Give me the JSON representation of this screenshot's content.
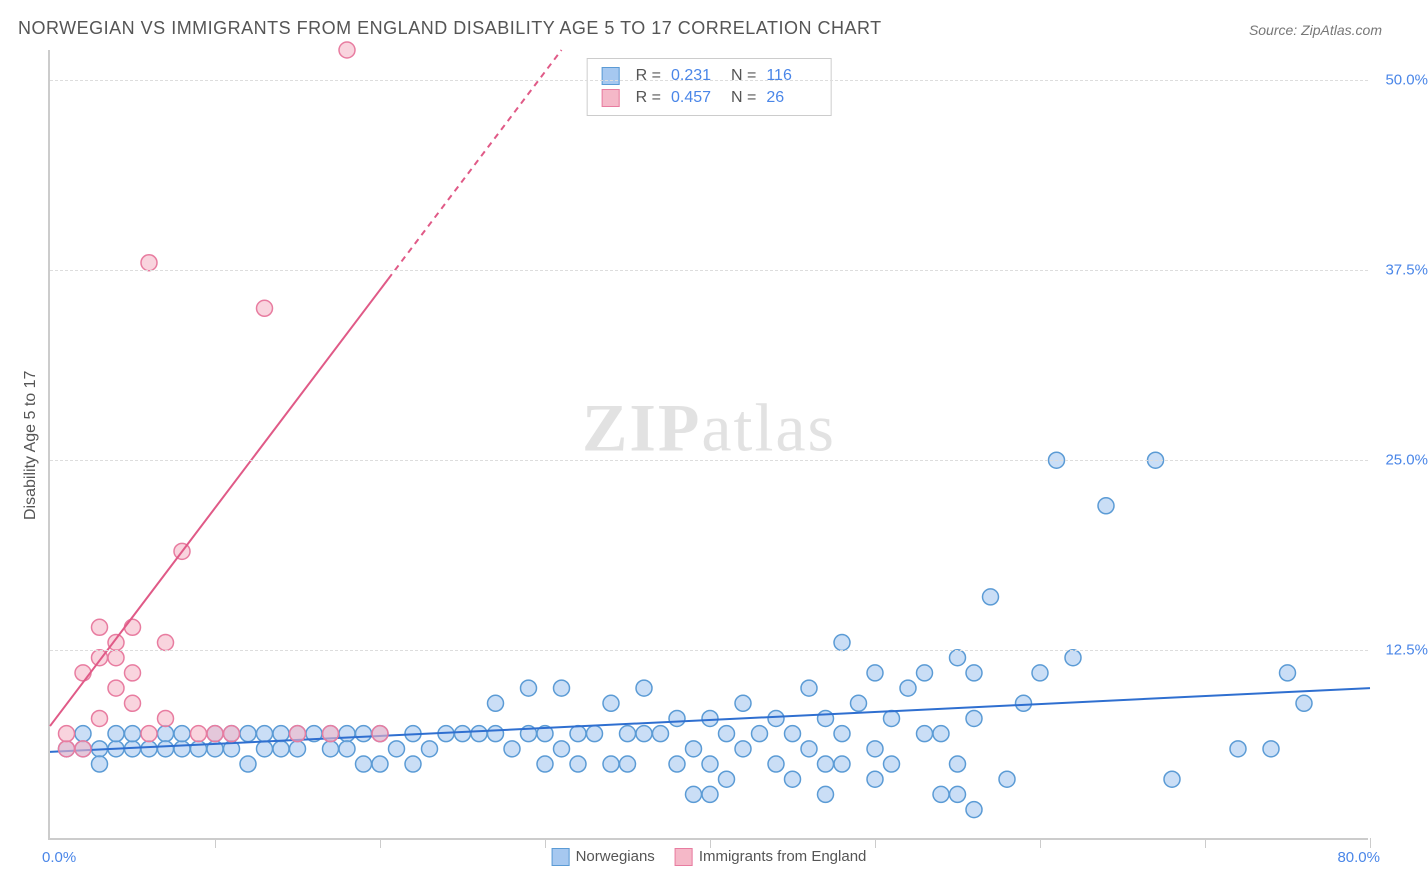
{
  "title": "NORWEGIAN VS IMMIGRANTS FROM ENGLAND DISABILITY AGE 5 TO 17 CORRELATION CHART",
  "source": "Source: ZipAtlas.com",
  "watermark": {
    "bold": "ZIP",
    "rest": "atlas"
  },
  "chart": {
    "type": "scatter",
    "ylabel": "Disability Age 5 to 17",
    "xlim": [
      0,
      80
    ],
    "ylim": [
      0,
      52
    ],
    "xticks": [
      0,
      10,
      20,
      30,
      40,
      50,
      60,
      70,
      80
    ],
    "yticks": [
      12.5,
      25.0,
      37.5,
      50.0
    ],
    "xlim_labels": [
      "0.0%",
      "80.0%"
    ],
    "ytick_labels": [
      "12.5%",
      "25.0%",
      "37.5%",
      "50.0%"
    ],
    "background_color": "#ffffff",
    "grid_color": "#dddddd",
    "axis_color": "#cccccc",
    "marker_radius": 8,
    "marker_stroke_width": 1.5,
    "series": [
      {
        "name": "Norwegians",
        "color_fill": "#a6c8f0",
        "color_stroke": "#5b9bd5",
        "fill_opacity": 0.6,
        "line_color": "#2f6fd0",
        "line_width": 2,
        "trend": {
          "x1": 0,
          "y1": 5.8,
          "x2": 80,
          "y2": 10.0,
          "dash": "none"
        },
        "points": [
          [
            1,
            6
          ],
          [
            2,
            6
          ],
          [
            2,
            7
          ],
          [
            3,
            6
          ],
          [
            3,
            5
          ],
          [
            4,
            6
          ],
          [
            4,
            7
          ],
          [
            5,
            6
          ],
          [
            5,
            7
          ],
          [
            6,
            6
          ],
          [
            7,
            7
          ],
          [
            7,
            6
          ],
          [
            8,
            6
          ],
          [
            8,
            7
          ],
          [
            9,
            6
          ],
          [
            10,
            7
          ],
          [
            10,
            6
          ],
          [
            11,
            7
          ],
          [
            11,
            6
          ],
          [
            12,
            7
          ],
          [
            12,
            5
          ],
          [
            13,
            6
          ],
          [
            13,
            7
          ],
          [
            14,
            7
          ],
          [
            14,
            6
          ],
          [
            15,
            7
          ],
          [
            15,
            6
          ],
          [
            16,
            7
          ],
          [
            17,
            7
          ],
          [
            17,
            6
          ],
          [
            18,
            7
          ],
          [
            18,
            6
          ],
          [
            19,
            5
          ],
          [
            19,
            7
          ],
          [
            20,
            7
          ],
          [
            20,
            5
          ],
          [
            21,
            6
          ],
          [
            22,
            7
          ],
          [
            22,
            5
          ],
          [
            23,
            6
          ],
          [
            24,
            7
          ],
          [
            25,
            7
          ],
          [
            26,
            7
          ],
          [
            27,
            7
          ],
          [
            27,
            9
          ],
          [
            28,
            6
          ],
          [
            29,
            7
          ],
          [
            29,
            10
          ],
          [
            30,
            7
          ],
          [
            30,
            5
          ],
          [
            31,
            10
          ],
          [
            31,
            6
          ],
          [
            32,
            7
          ],
          [
            32,
            5
          ],
          [
            33,
            7
          ],
          [
            34,
            9
          ],
          [
            34,
            5
          ],
          [
            35,
            7
          ],
          [
            35,
            5
          ],
          [
            36,
            7
          ],
          [
            36,
            10
          ],
          [
            37,
            7
          ],
          [
            38,
            8
          ],
          [
            38,
            5
          ],
          [
            39,
            6
          ],
          [
            39,
            3
          ],
          [
            40,
            8
          ],
          [
            40,
            5
          ],
          [
            41,
            7
          ],
          [
            41,
            4
          ],
          [
            42,
            6
          ],
          [
            42,
            9
          ],
          [
            43,
            7
          ],
          [
            44,
            5
          ],
          [
            44,
            8
          ],
          [
            45,
            7
          ],
          [
            45,
            4
          ],
          [
            46,
            10
          ],
          [
            46,
            6
          ],
          [
            47,
            8
          ],
          [
            47,
            3
          ],
          [
            48,
            13
          ],
          [
            48,
            5
          ],
          [
            49,
            9
          ],
          [
            50,
            11
          ],
          [
            50,
            6
          ],
          [
            51,
            8
          ],
          [
            51,
            5
          ],
          [
            52,
            10
          ],
          [
            53,
            7
          ],
          [
            53,
            11
          ],
          [
            54,
            7
          ],
          [
            54,
            3
          ],
          [
            55,
            12
          ],
          [
            55,
            5
          ],
          [
            56,
            11
          ],
          [
            56,
            2
          ],
          [
            57,
            16
          ],
          [
            58,
            4
          ],
          [
            59,
            9
          ],
          [
            60,
            11
          ],
          [
            61,
            25
          ],
          [
            62,
            12
          ],
          [
            64,
            22
          ],
          [
            67,
            25
          ],
          [
            68,
            4
          ],
          [
            72,
            6
          ],
          [
            74,
            6
          ],
          [
            75,
            11
          ],
          [
            76,
            9
          ],
          [
            55,
            3
          ],
          [
            56,
            8
          ],
          [
            40,
            3
          ],
          [
            47,
            5
          ],
          [
            50,
            4
          ],
          [
            48,
            7
          ]
        ]
      },
      {
        "name": "Immigrants from England",
        "color_fill": "#f5b8c8",
        "color_stroke": "#e87ca0",
        "fill_opacity": 0.6,
        "line_color": "#e05a87",
        "line_width": 2,
        "trend": {
          "x1": 0,
          "y1": 7.5,
          "x2": 31,
          "y2": 52,
          "dash_from_x": 20.5
        },
        "points": [
          [
            1,
            6
          ],
          [
            1,
            7
          ],
          [
            2,
            6
          ],
          [
            2,
            11
          ],
          [
            3,
            8
          ],
          [
            3,
            12
          ],
          [
            3,
            14
          ],
          [
            4,
            12
          ],
          [
            4,
            10
          ],
          [
            4,
            13
          ],
          [
            5,
            14
          ],
          [
            5,
            11
          ],
          [
            5,
            9
          ],
          [
            6,
            7
          ],
          [
            6,
            38
          ],
          [
            7,
            8
          ],
          [
            7,
            13
          ],
          [
            8,
            19
          ],
          [
            9,
            7
          ],
          [
            10,
            7
          ],
          [
            11,
            7
          ],
          [
            13,
            35
          ],
          [
            15,
            7
          ],
          [
            17,
            7
          ],
          [
            18,
            52
          ],
          [
            20,
            7
          ]
        ]
      }
    ],
    "stats_box": {
      "rows": [
        {
          "swatch_fill": "#a6c8f0",
          "swatch_stroke": "#5b9bd5",
          "r_label": "R =",
          "r": "0.231",
          "n_label": "N =",
          "n": "116"
        },
        {
          "swatch_fill": "#f5b8c8",
          "swatch_stroke": "#e87ca0",
          "r_label": "R =",
          "r": "0.457",
          "n_label": "N =",
          "n": "26"
        }
      ]
    },
    "legend_bottom": [
      {
        "swatch_fill": "#a6c8f0",
        "swatch_stroke": "#5b9bd5",
        "label": "Norwegians"
      },
      {
        "swatch_fill": "#f5b8c8",
        "swatch_stroke": "#e87ca0",
        "label": "Immigrants from England"
      }
    ]
  }
}
